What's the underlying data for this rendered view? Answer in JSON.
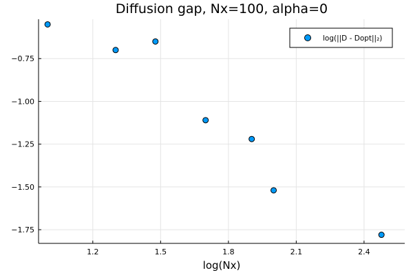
{
  "chart_data": {
    "type": "scatter",
    "title": "Diffusion gap, Nx=100, alpha=0",
    "xlabel": "log(Nx)",
    "ylabel": "",
    "xlim": [
      0.96,
      2.58
    ],
    "ylim": [
      -1.83,
      -0.52
    ],
    "xticks": [
      1.2,
      1.5,
      1.8,
      2.1,
      2.4
    ],
    "xtick_labels": [
      "1.2",
      "1.5",
      "1.8",
      "2.1",
      "2.4"
    ],
    "yticks": [
      -0.75,
      -1.0,
      -1.25,
      -1.5,
      -1.75
    ],
    "ytick_labels": [
      "−0.75",
      "−1.00",
      "−1.25",
      "−1.50",
      "−1.75"
    ],
    "grid": true,
    "legend_position": "top-right",
    "series": [
      {
        "name": "log(||D - Dopt||₂)",
        "color": "#009af9",
        "x": [
          1.0,
          1.301,
          1.477,
          1.699,
          1.903,
          2.0,
          2.477
        ],
        "y": [
          -0.55,
          -0.7,
          -0.65,
          -1.11,
          -1.22,
          -1.52,
          -1.78
        ]
      }
    ]
  }
}
